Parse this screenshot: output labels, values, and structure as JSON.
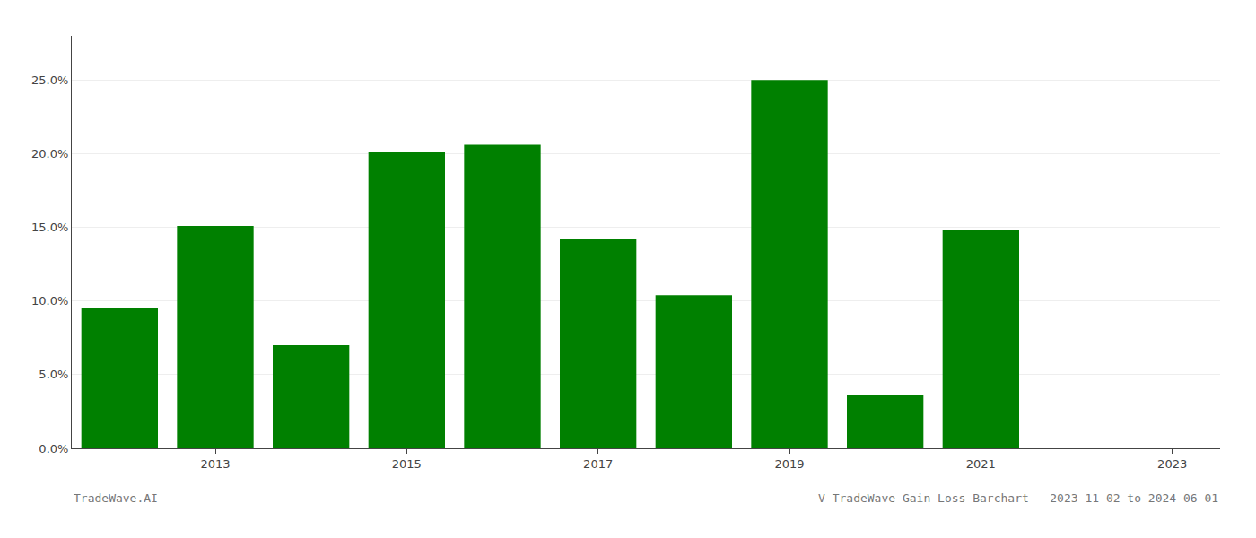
{
  "chart_data": {
    "type": "bar",
    "title": "V TradeWave Gain Loss Barchart - 2023-11-02 to 2024-06-01",
    "annotations": [
      "TradeWave.AI"
    ],
    "x": [
      2012,
      2013,
      2014,
      2015,
      2016,
      2017,
      2018,
      2019,
      2020,
      2021,
      2022
    ],
    "values": [
      0.095,
      0.151,
      0.07,
      0.201,
      0.206,
      0.142,
      0.104,
      0.25,
      0.036,
      0.148,
      0.0
    ],
    "color": "#008000",
    "xlim": [
      2011.5,
      2023.5
    ],
    "xticks": [
      2013,
      2015,
      2017,
      2019,
      2021,
      2023
    ],
    "ylim": [
      0,
      0.28
    ],
    "yticks": [
      {
        "value": 0.0,
        "label": "0.0%"
      },
      {
        "value": 0.05,
        "label": "5.0%"
      },
      {
        "value": 0.1,
        "label": "10.0%"
      },
      {
        "value": 0.15,
        "label": "15.0%"
      },
      {
        "value": 0.2,
        "label": "20.0%"
      },
      {
        "value": 0.25,
        "label": "25.0%"
      }
    ],
    "grid": true
  }
}
